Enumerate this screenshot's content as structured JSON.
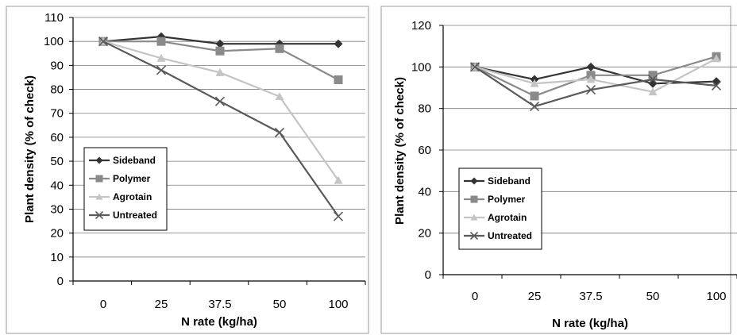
{
  "chart_data": [
    {
      "type": "line",
      "title": "",
      "xlabel": "N rate (kg/ha)",
      "ylabel": "Plant density (% of check)",
      "categories": [
        "0",
        "25",
        "37.5",
        "50",
        "100"
      ],
      "ylim": [
        0,
        110
      ],
      "yticks": [
        0,
        10,
        20,
        30,
        40,
        50,
        60,
        70,
        80,
        90,
        100,
        110
      ],
      "grid": true,
      "legend_position": "left-lower",
      "series": [
        {
          "name": "Sideband",
          "values": [
            100,
            102,
            99,
            99,
            99
          ],
          "color": "#333333",
          "marker": "diamond"
        },
        {
          "name": "Polymer",
          "values": [
            100,
            100,
            96,
            97,
            84
          ],
          "color": "#8a8a8a",
          "marker": "square"
        },
        {
          "name": "Agrotain",
          "values": [
            100,
            93,
            87,
            77,
            42
          ],
          "color": "#c4c4c4",
          "marker": "triangle"
        },
        {
          "name": "Untreated",
          "values": [
            100,
            88,
            75,
            62,
            27
          ],
          "color": "#5a5a5a",
          "marker": "x"
        }
      ]
    },
    {
      "type": "line",
      "title": "",
      "xlabel": "N rate (kg/ha)",
      "ylabel": "Plant density (% of check)",
      "categories": [
        "0",
        "25",
        "37.5",
        "50",
        "100"
      ],
      "ylim": [
        0,
        120
      ],
      "yticks": [
        0,
        20,
        40,
        60,
        80,
        100,
        120
      ],
      "grid": true,
      "legend_position": "left-lower",
      "series": [
        {
          "name": "Sideband",
          "values": [
            100,
            94,
            100,
            92,
            93
          ],
          "color": "#333333",
          "marker": "diamond"
        },
        {
          "name": "Polymer",
          "values": [
            100,
            86,
            96,
            96,
            105
          ],
          "color": "#8a8a8a",
          "marker": "square"
        },
        {
          "name": "Agrotain",
          "values": [
            100,
            92,
            94,
            88,
            104
          ],
          "color": "#c4c4c4",
          "marker": "triangle"
        },
        {
          "name": "Untreated",
          "values": [
            100,
            81,
            89,
            94,
            91
          ],
          "color": "#5a5a5a",
          "marker": "x"
        }
      ]
    }
  ]
}
